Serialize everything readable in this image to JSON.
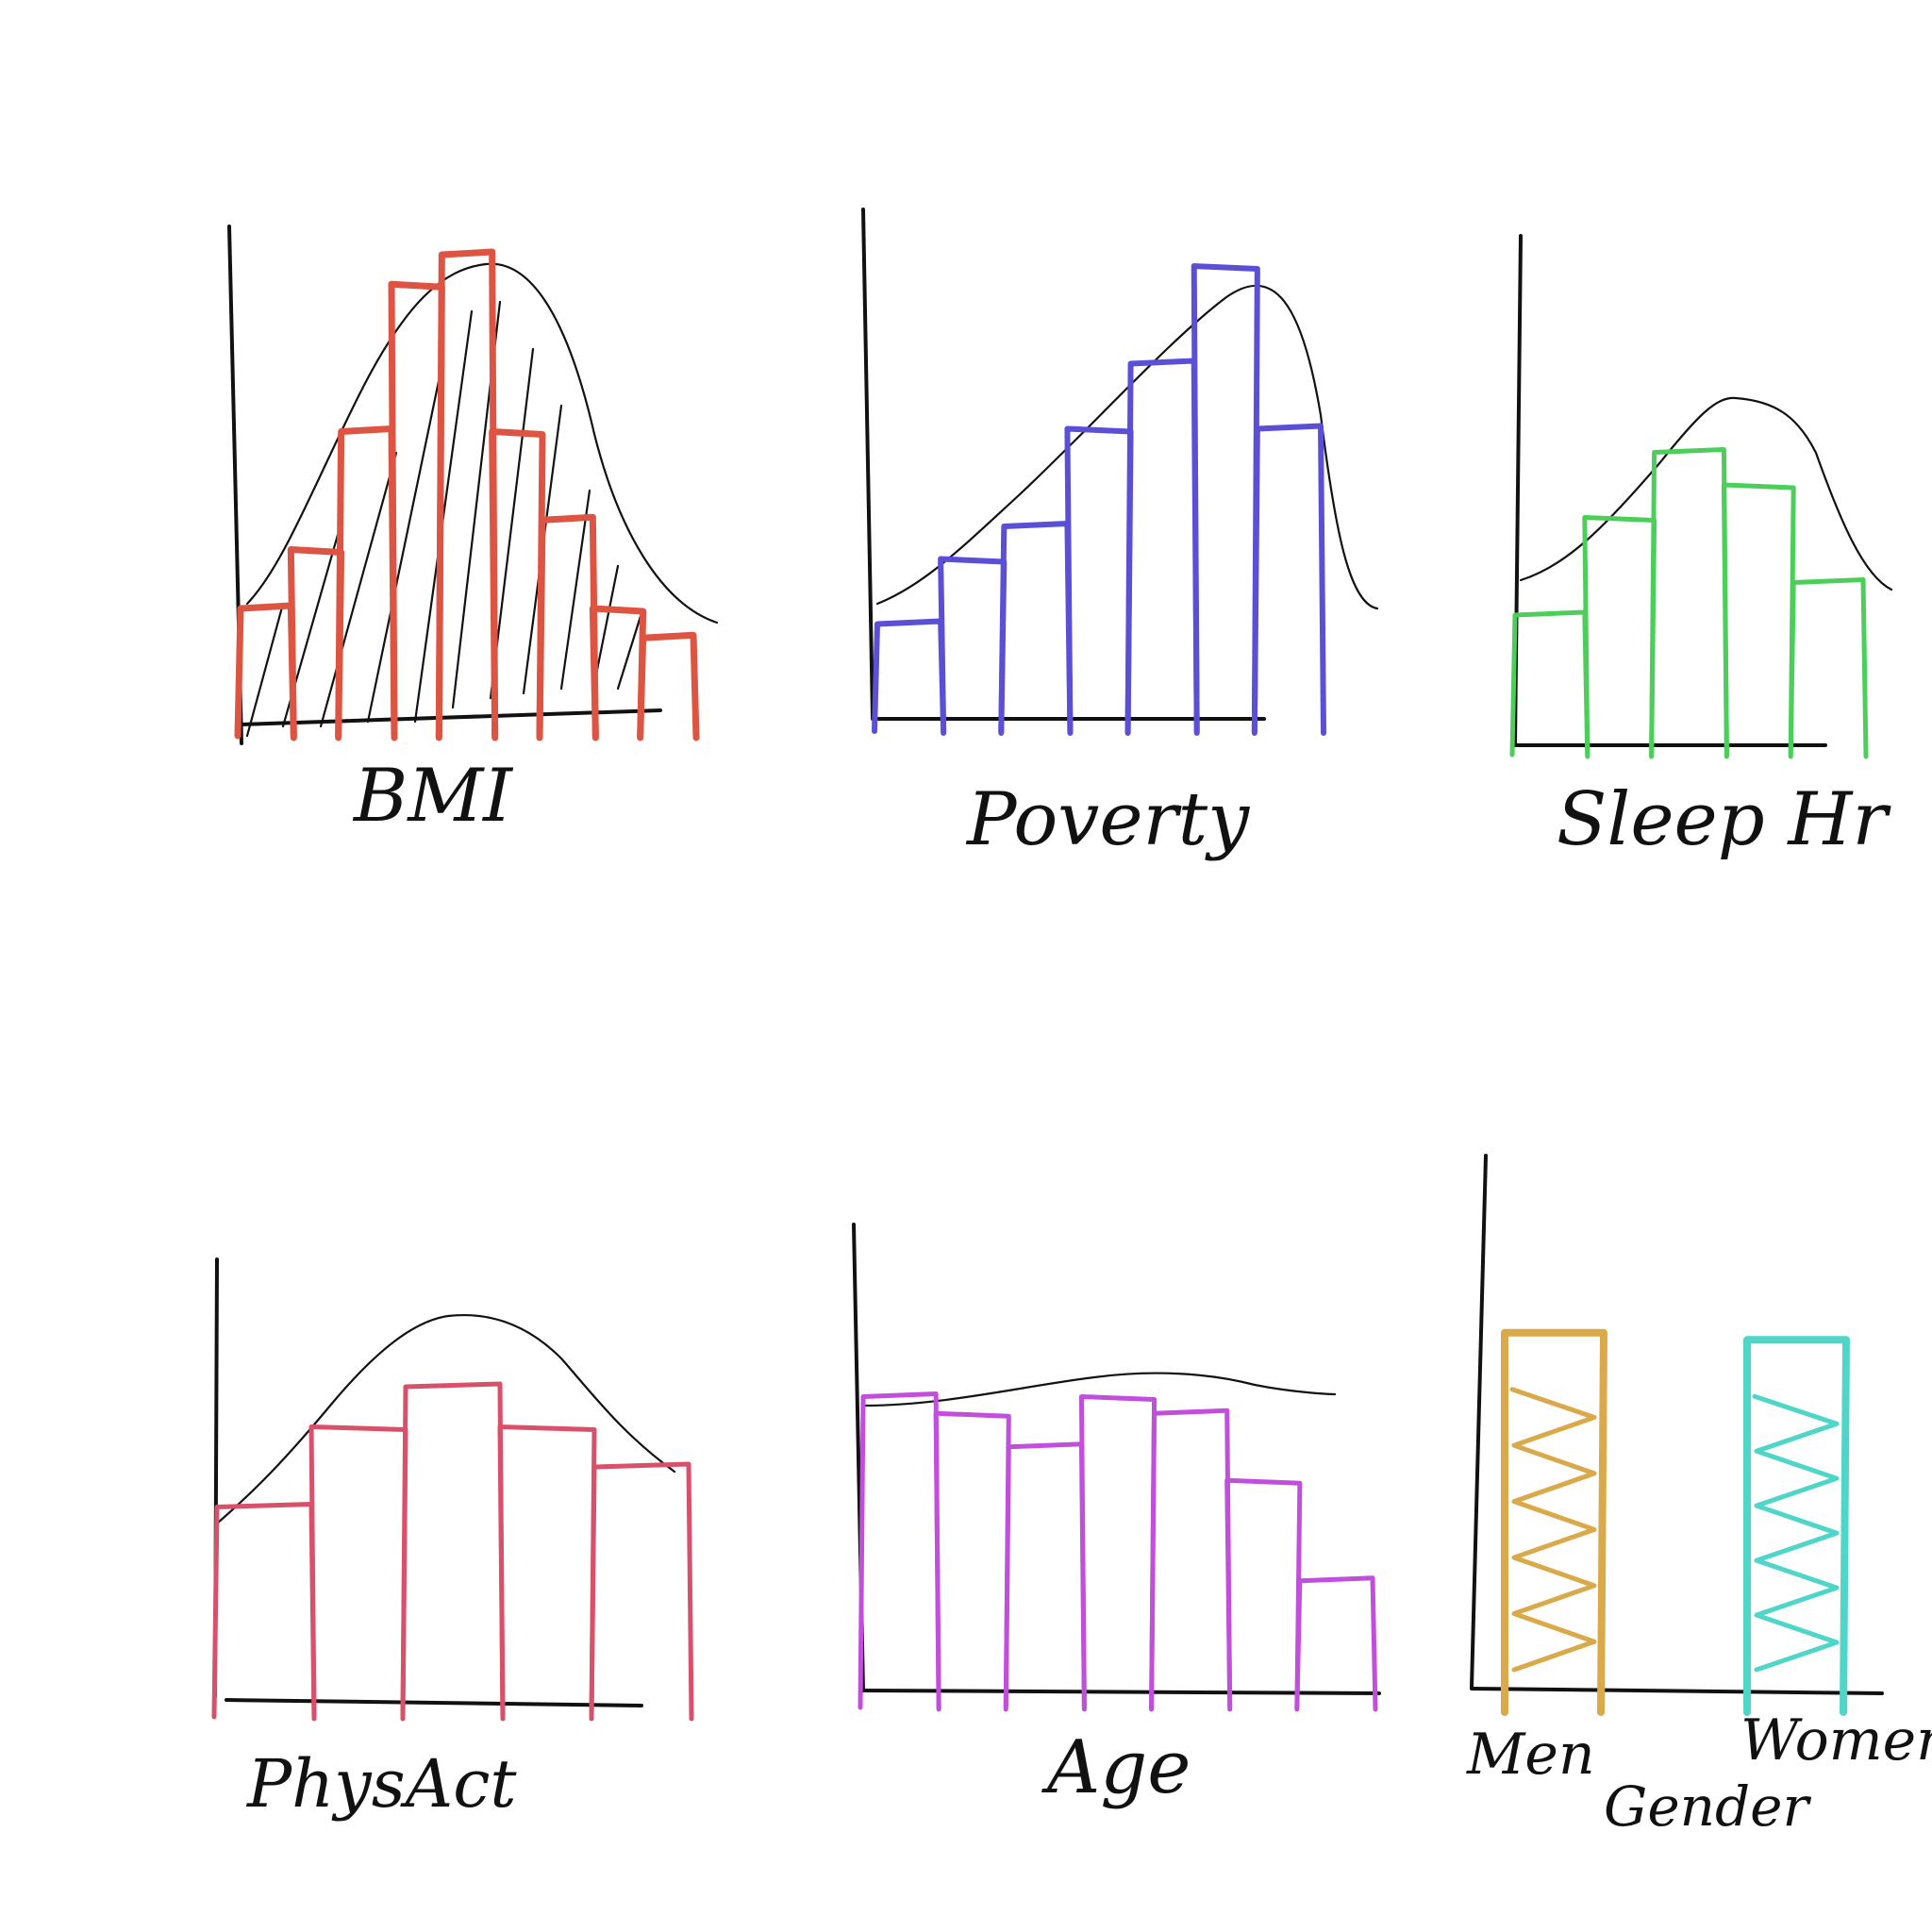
{
  "colors": {
    "bmi": "#dd5442",
    "poverty": "#5a4fd6",
    "sleep": "#4ccf5a",
    "physact": "#d9506a",
    "age": "#c24fdc",
    "men": "#d9a94a",
    "women": "#4fd6c8",
    "ink": "#111111"
  },
  "chart_data": [
    {
      "type": "bar",
      "xlabel": "BMI",
      "values": [
        4,
        6,
        10,
        15,
        16,
        10,
        7,
        4,
        3
      ],
      "ylim": [
        0,
        16
      ],
      "density_curve": true,
      "hatched": true
    },
    {
      "type": "bar",
      "xlabel": "Poverty",
      "values": [
        3,
        5,
        6,
        9,
        11,
        14,
        9
      ],
      "ylim": [
        0,
        14
      ],
      "density_curve": true
    },
    {
      "type": "bar",
      "xlabel": "Sleep Hr",
      "values": [
        4,
        7,
        9,
        8,
        5
      ],
      "ylim": [
        0,
        10
      ],
      "density_curve": true
    },
    {
      "type": "bar",
      "xlabel": "PhysAct",
      "values": [
        5,
        7,
        8,
        7,
        6
      ],
      "ylim": [
        0,
        10
      ],
      "density_curve": true
    },
    {
      "type": "bar",
      "xlabel": "Age",
      "values": [
        9,
        8.5,
        7.5,
        9,
        8.5,
        6.5,
        3.5
      ],
      "ylim": [
        0,
        10
      ],
      "density_curve": true
    },
    {
      "type": "bar",
      "xlabel": "Gender",
      "categories": [
        "Men",
        "Women"
      ],
      "values": [
        10,
        9.8
      ],
      "ylim": [
        0,
        11
      ],
      "hatched": true
    }
  ]
}
